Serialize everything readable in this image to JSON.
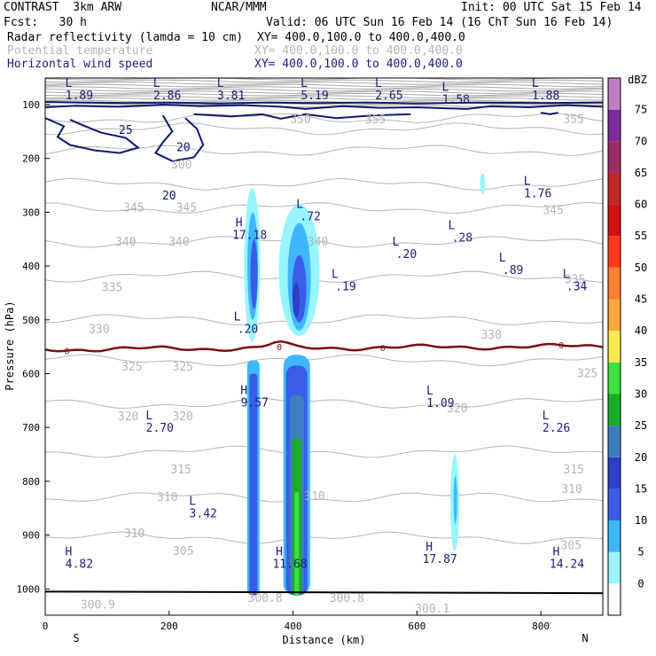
{
  "header": {
    "model": "CONTRAST  3km ARW",
    "center": "NCAR/MMM",
    "init": "Init: 00 UTC Sat 15 Feb 14",
    "fcst": "Fcst:   30 h",
    "valid": "Valid: 06 UTC Sun 16 Feb 14 (16 ChT Sun 16 Feb 14)",
    "field1": "Radar reflectivity (lamda = 10 cm)",
    "field1_xy": "XY= 400.0,100.0 to 400.0,400.0",
    "field2": "Potential temperature",
    "field2_xy": "XY= 400.0,100.0 to 400.0,400.0",
    "field3": "Horizontal wind speed",
    "field3_xy": "XY= 400.0,100.0 to 400.0,400.0"
  },
  "chart_data": {
    "type": "cross-section",
    "xlabel": "Distance (km)",
    "ylabel": "Pressure (hPa)",
    "xlim": [
      0,
      900
    ],
    "ylim": [
      1050,
      50
    ],
    "xticks": [
      0,
      200,
      400,
      600,
      800
    ],
    "yticks": [
      100,
      200,
      300,
      400,
      500,
      600,
      700,
      800,
      900,
      1000
    ],
    "x_end_labels": {
      "left": "S",
      "right": "N"
    },
    "colorbar": {
      "unit": "dBZ",
      "levels": [
        0,
        5,
        10,
        15,
        20,
        25,
        30,
        35,
        40,
        45,
        50,
        55,
        60,
        65,
        70,
        75
      ],
      "colors": [
        "#ffffff",
        "#98f5ff",
        "#40b6ff",
        "#3a5de8",
        "#2d3fc8",
        "#3c7fbf",
        "#1aad29",
        "#3ee03e",
        "#ffe84c",
        "#ffaa3c",
        "#ff8030",
        "#ff3a1e",
        "#d01414",
        "#c02828",
        "#9c2c64",
        "#7c2c9c",
        "#c080c0"
      ]
    },
    "theta_labels": [
      {
        "x": 412,
        "p": 128,
        "v": "350"
      },
      {
        "x": 533,
        "p": 128,
        "v": "355"
      },
      {
        "x": 853,
        "p": 128,
        "v": "355"
      },
      {
        "x": 220,
        "p": 212,
        "v": "300"
      },
      {
        "x": 143,
        "p": 292,
        "v": "345"
      },
      {
        "x": 228,
        "p": 292,
        "v": "345"
      },
      {
        "x": 820,
        "p": 297,
        "v": "345"
      },
      {
        "x": 130,
        "p": 355,
        "v": "340"
      },
      {
        "x": 216,
        "p": 355,
        "v": "340"
      },
      {
        "x": 440,
        "p": 355,
        "v": "340"
      },
      {
        "x": 108,
        "p": 440,
        "v": "335"
      },
      {
        "x": 855,
        "p": 425,
        "v": "335"
      },
      {
        "x": 87,
        "p": 518,
        "v": "330"
      },
      {
        "x": 720,
        "p": 528,
        "v": "330"
      },
      {
        "x": 140,
        "p": 588,
        "v": "325"
      },
      {
        "x": 222,
        "p": 588,
        "v": "325"
      },
      {
        "x": 875,
        "p": 600,
        "v": "325"
      },
      {
        "x": 134,
        "p": 680,
        "v": "320"
      },
      {
        "x": 222,
        "p": 680,
        "v": "320"
      },
      {
        "x": 665,
        "p": 665,
        "v": "320"
      },
      {
        "x": 219,
        "p": 779,
        "v": "315"
      },
      {
        "x": 853,
        "p": 779,
        "v": "315"
      },
      {
        "x": 197,
        "p": 830,
        "v": "310"
      },
      {
        "x": 435,
        "p": 828,
        "v": "310"
      },
      {
        "x": 850,
        "p": 815,
        "v": "310"
      },
      {
        "x": 144,
        "p": 897,
        "v": "310"
      },
      {
        "x": 223,
        "p": 930,
        "v": "305"
      },
      {
        "x": 849,
        "p": 920,
        "v": "305"
      },
      {
        "x": 85,
        "p": 1030,
        "v": "300.9"
      },
      {
        "x": 355,
        "p": 1018,
        "v": "300.8"
      },
      {
        "x": 487,
        "p": 1018,
        "v": "300.8"
      },
      {
        "x": 625,
        "p": 1037,
        "v": "300.1"
      }
    ],
    "zero_labels": [
      {
        "x": 35,
        "v": "0"
      },
      {
        "x": 378,
        "v": "0"
      },
      {
        "x": 545,
        "v": "0"
      },
      {
        "x": 833,
        "v": "0"
      }
    ],
    "wind_labels": [
      {
        "x": 130,
        "p": 148,
        "v": "25"
      },
      {
        "x": 223,
        "p": 180,
        "v": "20"
      },
      {
        "x": 200,
        "p": 270,
        "v": "20"
      }
    ],
    "extrema": [
      {
        "type": "L",
        "value": "1.89",
        "x": 55,
        "p": 80
      },
      {
        "type": "L",
        "value": "2.86",
        "x": 197,
        "p": 80
      },
      {
        "type": "L",
        "value": "3.81",
        "x": 300,
        "p": 80
      },
      {
        "type": "L",
        "value": "5.19",
        "x": 435,
        "p": 80
      },
      {
        "type": "L",
        "value": "2.65",
        "x": 555,
        "p": 80
      },
      {
        "type": "L",
        "value": "1.58",
        "x": 663,
        "p": 88
      },
      {
        "type": "L",
        "value": "1.88",
        "x": 808,
        "p": 80
      },
      {
        "type": "L",
        "value": "1.76",
        "x": 795,
        "p": 262
      },
      {
        "type": "L",
        "value": ".72",
        "x": 428,
        "p": 305
      },
      {
        "type": "H",
        "value": "17.18",
        "x": 330,
        "p": 340
      },
      {
        "type": "L",
        "value": ".28",
        "x": 673,
        "p": 345
      },
      {
        "type": "L",
        "value": ".20",
        "x": 583,
        "p": 375
      },
      {
        "type": "L",
        "value": ".89",
        "x": 755,
        "p": 405
      },
      {
        "type": "L",
        "value": ".19",
        "x": 485,
        "p": 435
      },
      {
        "type": "L",
        "value": ".34",
        "x": 858,
        "p": 435
      },
      {
        "type": "L",
        "value": ".20",
        "x": 327,
        "p": 514
      },
      {
        "type": "H",
        "value": "9.57",
        "x": 338,
        "p": 651
      },
      {
        "type": "L",
        "value": "1.09",
        "x": 638,
        "p": 652
      },
      {
        "type": "L",
        "value": "2.70",
        "x": 185,
        "p": 698
      },
      {
        "type": "L",
        "value": "2.26",
        "x": 825,
        "p": 698
      },
      {
        "type": "L",
        "value": "3.42",
        "x": 255,
        "p": 857
      },
      {
        "type": "H",
        "value": "4.82",
        "x": 55,
        "p": 951
      },
      {
        "type": "H",
        "value": "11.68",
        "x": 395,
        "p": 951
      },
      {
        "type": "H",
        "value": "17.87",
        "x": 637,
        "p": 942
      },
      {
        "type": "H",
        "value": "14.24",
        "x": 842,
        "p": 951
      }
    ]
  }
}
